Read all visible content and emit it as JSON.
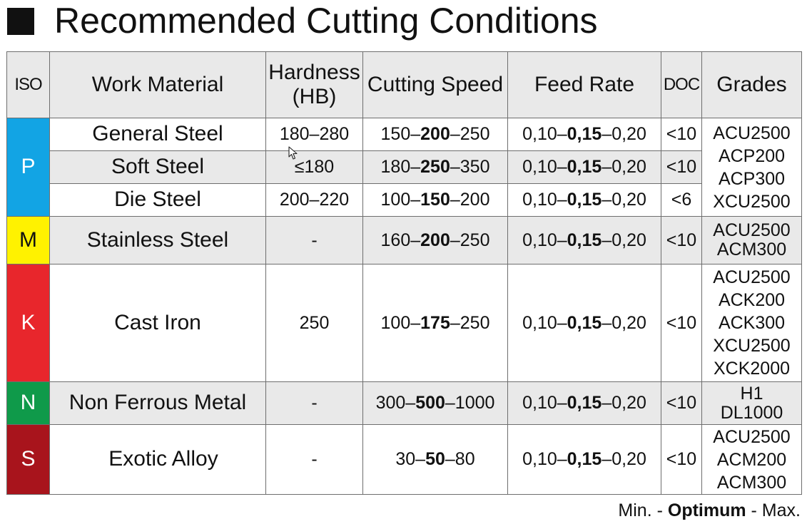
{
  "title": "Recommended Cutting Conditions",
  "colors": {
    "P": "#12a4e4",
    "M": "#fff200",
    "K": "#e8262c",
    "N": "#0f9a4a",
    "S": "#a8141c",
    "header_bg": "#e9e9e9"
  },
  "headers": {
    "iso": "ISO",
    "material": "Work Material",
    "hardness_line1": "Hardness",
    "hardness_line2": "(HB)",
    "speed": "Cutting Speed",
    "feed": "Feed Rate",
    "doc": "DOC",
    "grades": "Grades"
  },
  "rows": [
    {
      "material": "General Steel",
      "hardness": "180–280",
      "speed": {
        "min": "150–",
        "opt": "200",
        "max": "–250"
      },
      "feed": {
        "min": "0,10–",
        "opt": "0,15",
        "max": "–0,20"
      },
      "doc": "<10"
    },
    {
      "material": "Soft Steel",
      "hardness": "≤180",
      "speed": {
        "min": "180–",
        "opt": "250",
        "max": "–350"
      },
      "feed": {
        "min": "0,10–",
        "opt": "0,15",
        "max": "–0,20"
      },
      "doc": "<10"
    },
    {
      "material": "Die Steel",
      "hardness": "200–220",
      "speed": {
        "min": "100–",
        "opt": "150",
        "max": "–200"
      },
      "feed": {
        "min": "0,10–",
        "opt": "0,15",
        "max": "–0,20"
      },
      "doc": "<6"
    },
    {
      "material": "Stainless Steel",
      "hardness": "-",
      "speed": {
        "min": "160–",
        "opt": "200",
        "max": "–250"
      },
      "feed": {
        "min": "0,10–",
        "opt": "0,15",
        "max": "–0,20"
      },
      "doc": "<10"
    },
    {
      "material": "Cast Iron",
      "hardness": "250",
      "speed": {
        "min": "100–",
        "opt": "175",
        "max": "–250"
      },
      "feed": {
        "min": "0,10–",
        "opt": "0,15",
        "max": "–0,20"
      },
      "doc": "<10"
    },
    {
      "material": "Non Ferrous Metal",
      "hardness": "-",
      "speed": {
        "min": "300–",
        "opt": "500",
        "max": "–1000"
      },
      "feed": {
        "min": "0,10–",
        "opt": "0,15",
        "max": "–0,20"
      },
      "doc": "<10"
    },
    {
      "material": "Exotic Alloy",
      "hardness": "-",
      "speed": {
        "min": "30–",
        "opt": "50",
        "max": "–80"
      },
      "feed": {
        "min": "0,10–",
        "opt": "0,15",
        "max": "–0,20"
      },
      "doc": "<10"
    }
  ],
  "iso_groups": {
    "P": "P",
    "M": "M",
    "K": "K",
    "N": "N",
    "S": "S"
  },
  "grades": {
    "P": [
      "ACU2500",
      "ACP200",
      "ACP300",
      "XCU2500"
    ],
    "M": [
      "ACU2500",
      "ACM300"
    ],
    "K": [
      "ACU2500",
      "ACK200",
      "ACK300",
      "XCU2500",
      "XCK2000"
    ],
    "N": [
      "H1",
      "DL1000"
    ],
    "S": [
      "ACU2500",
      "ACM200",
      "ACM300"
    ]
  },
  "legend": {
    "min": "Min. - ",
    "opt": "Optimum",
    "max": " - Max."
  },
  "icons": {
    "cursor": "mouse-pointer-icon"
  }
}
